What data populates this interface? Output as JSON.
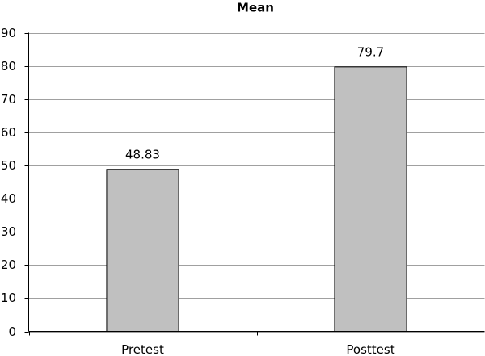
{
  "chart_data": {
    "type": "bar",
    "title": "Mean",
    "categories": [
      "Pretest",
      "Posttest"
    ],
    "values": [
      48.83,
      79.7
    ],
    "color": "#c0c0c0",
    "ylim": [
      0,
      90
    ],
    "yticks": [
      0,
      10,
      20,
      30,
      40,
      50,
      60,
      70,
      80,
      90
    ],
    "grid": true
  }
}
